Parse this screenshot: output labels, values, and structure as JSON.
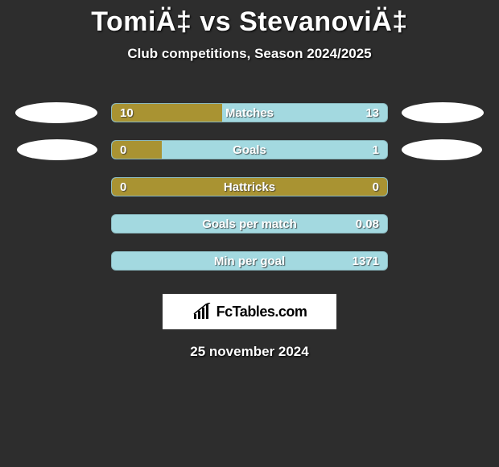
{
  "title": "TomiÄ‡ vs StevanoviÄ‡",
  "subtitle": "Club competitions, Season 2024/2025",
  "date": "25 november 2024",
  "logo_text": "FcTables.com",
  "colors": {
    "background": "#2d2d2d",
    "left_fill": "#a99332",
    "right_fill": "#a3d9e0",
    "oval_left": "#ffffff",
    "oval_right": "#ffffff",
    "logo_bg": "#ffffff",
    "text": "#ffffff"
  },
  "stats": [
    {
      "label": "Matches",
      "left_value": "10",
      "right_value": "13",
      "left_fill_pct": 40,
      "show_left_oval": true,
      "show_right_oval": true
    },
    {
      "label": "Goals",
      "left_value": "0",
      "right_value": "1",
      "left_fill_pct": 18,
      "show_left_oval": true,
      "show_right_oval": true
    },
    {
      "label": "Hattricks",
      "left_value": "0",
      "right_value": "0",
      "left_fill_pct": 100,
      "show_left_oval": false,
      "show_right_oval": false
    },
    {
      "label": "Goals per match",
      "left_value": "",
      "right_value": "0.08",
      "left_fill_pct": 0,
      "show_left_oval": false,
      "show_right_oval": false
    },
    {
      "label": "Min per goal",
      "left_value": "",
      "right_value": "1371",
      "left_fill_pct": 0,
      "show_left_oval": false,
      "show_right_oval": false
    }
  ]
}
